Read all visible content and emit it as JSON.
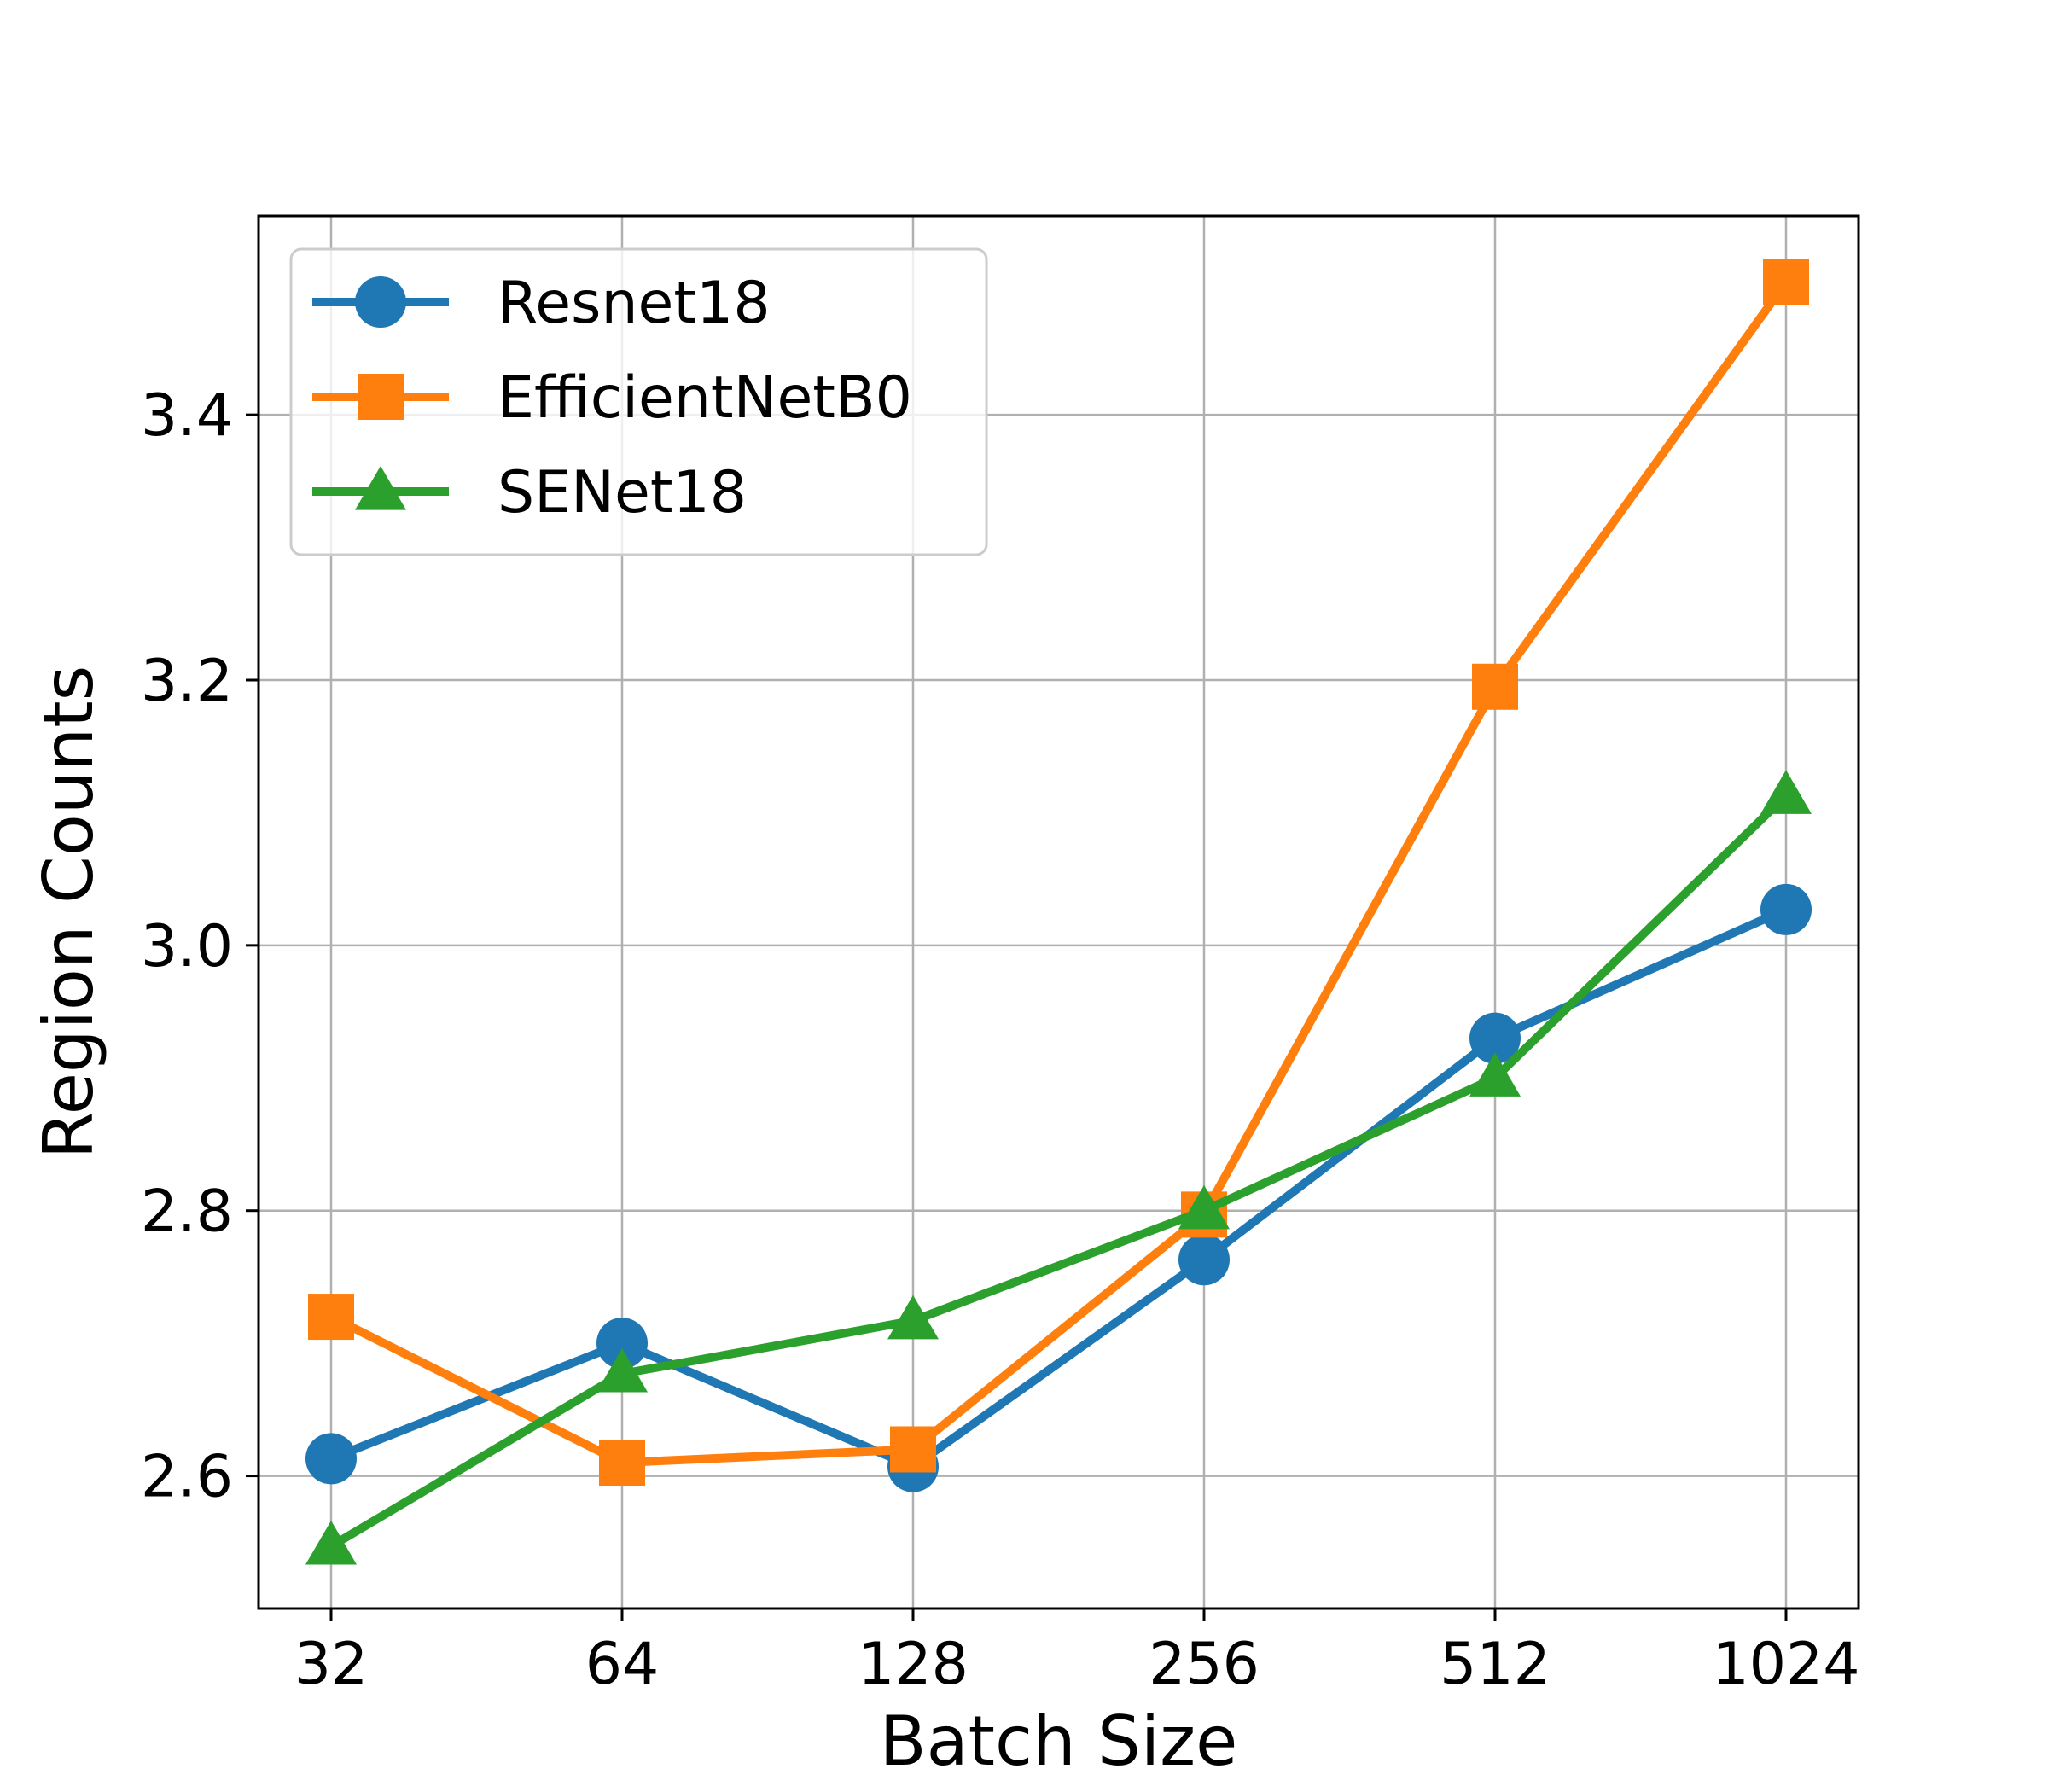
{
  "chart_data": {
    "type": "line",
    "title": "",
    "xlabel": "Batch Size",
    "ylabel": "Region Counts",
    "categories": [
      "32",
      "64",
      "128",
      "256",
      "512",
      "1024"
    ],
    "ylim": [
      2.5,
      3.55
    ],
    "yticks": [
      "2.6",
      "2.8",
      "3.0",
      "3.2",
      "3.4"
    ],
    "grid": true,
    "legend": "top-left",
    "series": [
      {
        "name": "Resnet18",
        "color": "#1f77b4",
        "marker": "circle",
        "values": [
          2.613,
          2.7,
          2.607,
          2.763,
          2.93,
          3.027
        ]
      },
      {
        "name": "EfficientNetB0",
        "color": "#ff7f0e",
        "marker": "square",
        "values": [
          2.72,
          2.61,
          2.62,
          2.797,
          3.195,
          3.5
        ]
      },
      {
        "name": "SENet18",
        "color": "#2ca02c",
        "marker": "triangle",
        "values": [
          2.547,
          2.677,
          2.717,
          2.8,
          2.9,
          3.113
        ]
      }
    ]
  }
}
